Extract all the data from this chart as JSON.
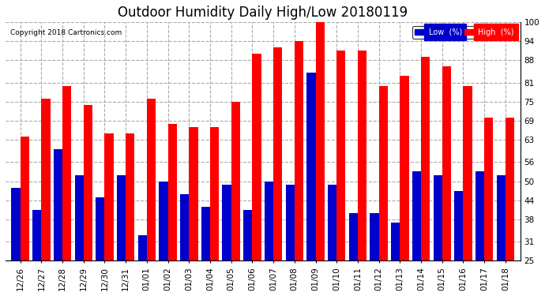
{
  "title": "Outdoor Humidity Daily High/Low 20180119",
  "copyright": "Copyright 2018 Cartronics.com",
  "categories": [
    "12/26",
    "12/27",
    "12/28",
    "12/29",
    "12/30",
    "12/31",
    "01/01",
    "01/02",
    "01/03",
    "01/04",
    "01/05",
    "01/06",
    "01/07",
    "01/08",
    "01/09",
    "01/10",
    "01/11",
    "01/12",
    "01/13",
    "01/14",
    "01/15",
    "01/16",
    "01/17",
    "01/18"
  ],
  "high": [
    64,
    76,
    80,
    74,
    65,
    65,
    76,
    68,
    67,
    67,
    75,
    90,
    92,
    94,
    100,
    91,
    91,
    80,
    83,
    89,
    86,
    80,
    70,
    70
  ],
  "low": [
    48,
    41,
    60,
    52,
    45,
    52,
    33,
    50,
    46,
    42,
    49,
    41,
    50,
    49,
    84,
    49,
    40,
    40,
    37,
    53,
    52,
    47,
    53,
    52
  ],
  "high_color": "#ff0000",
  "low_color": "#0000cc",
  "bg_color": "#ffffff",
  "grid_color": "#aaaaaa",
  "ymin": 25,
  "ymax": 100,
  "yticks": [
    25,
    31,
    38,
    44,
    50,
    56,
    63,
    69,
    75,
    81,
    88,
    94,
    100
  ],
  "bar_width": 0.42,
  "title_fontsize": 12,
  "tick_fontsize": 7.5,
  "legend_low_label": "Low  (%)",
  "legend_high_label": "High  (%)"
}
